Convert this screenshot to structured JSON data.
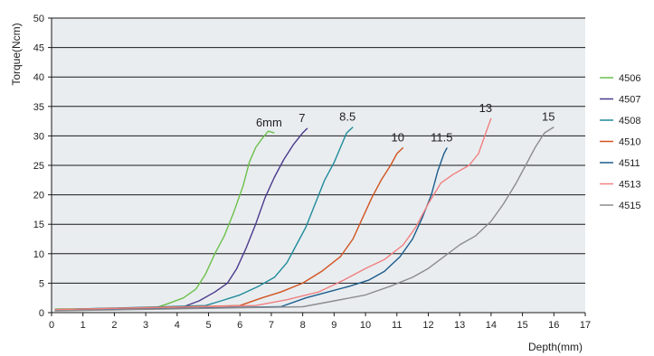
{
  "chart_data": {
    "type": "line",
    "xlabel": "Depth(mm)",
    "ylabel": "Torque(Ncm)",
    "xlim": [
      0,
      17
    ],
    "ylim": [
      0,
      50
    ],
    "xticks": [
      0,
      1,
      2,
      3,
      4,
      5,
      6,
      7,
      8,
      9,
      10,
      11,
      12,
      13,
      14,
      15,
      16,
      17
    ],
    "yticks": [
      0,
      5,
      10,
      15,
      20,
      25,
      30,
      35,
      40,
      45,
      50
    ],
    "grid": "horizontal",
    "plot_background": "#e9edf0",
    "legend_position": "right",
    "series": [
      {
        "name": "4506",
        "label": "6mm",
        "color": "#6cc04a",
        "points": [
          [
            0.1,
            0.6
          ],
          [
            3.3,
            0.8
          ],
          [
            3.7,
            1.5
          ],
          [
            4.2,
            2.5
          ],
          [
            4.6,
            4.0
          ],
          [
            4.9,
            6.5
          ],
          [
            5.2,
            10.0
          ],
          [
            5.5,
            13.0
          ],
          [
            5.8,
            17.0
          ],
          [
            6.1,
            21.5
          ],
          [
            6.3,
            25.5
          ],
          [
            6.5,
            28.0
          ],
          [
            6.7,
            29.5
          ],
          [
            6.9,
            30.8
          ],
          [
            7.1,
            30.5
          ]
        ]
      },
      {
        "name": "4507",
        "label": "7",
        "color": "#4b3a8c",
        "points": [
          [
            0.1,
            0.5
          ],
          [
            4.2,
            1.0
          ],
          [
            4.7,
            2.0
          ],
          [
            5.2,
            3.5
          ],
          [
            5.6,
            5.0
          ],
          [
            5.9,
            7.5
          ],
          [
            6.2,
            11.0
          ],
          [
            6.5,
            15.0
          ],
          [
            6.8,
            19.5
          ],
          [
            7.1,
            23.0
          ],
          [
            7.4,
            26.0
          ],
          [
            7.7,
            28.5
          ],
          [
            8.0,
            30.5
          ],
          [
            8.15,
            31.3
          ]
        ]
      },
      {
        "name": "4508",
        "label": "8.5",
        "color": "#1f8b9a",
        "points": [
          [
            0.1,
            0.5
          ],
          [
            4.9,
            1.2
          ],
          [
            5.4,
            2.0
          ],
          [
            6.0,
            3.0
          ],
          [
            6.6,
            4.5
          ],
          [
            7.1,
            6.0
          ],
          [
            7.5,
            8.5
          ],
          [
            7.8,
            11.5
          ],
          [
            8.1,
            14.5
          ],
          [
            8.4,
            18.5
          ],
          [
            8.7,
            22.5
          ],
          [
            9.0,
            25.5
          ],
          [
            9.2,
            28.0
          ],
          [
            9.4,
            30.5
          ],
          [
            9.6,
            31.5
          ]
        ]
      },
      {
        "name": "4510",
        "label": "10",
        "color": "#d2531f",
        "points": [
          [
            0.1,
            0.5
          ],
          [
            6.0,
            1.2
          ],
          [
            6.7,
            2.5
          ],
          [
            7.3,
            3.5
          ],
          [
            8.0,
            5.0
          ],
          [
            8.6,
            7.0
          ],
          [
            9.2,
            9.5
          ],
          [
            9.6,
            12.5
          ],
          [
            9.9,
            16.0
          ],
          [
            10.2,
            19.5
          ],
          [
            10.5,
            22.5
          ],
          [
            10.8,
            25.0
          ],
          [
            11.0,
            27.0
          ],
          [
            11.2,
            28.0
          ]
        ]
      },
      {
        "name": "4511",
        "label": "11.5",
        "color": "#1b5c8c",
        "points": [
          [
            0.1,
            0.4
          ],
          [
            7.3,
            1.0
          ],
          [
            8.1,
            2.5
          ],
          [
            8.8,
            3.5
          ],
          [
            9.5,
            4.5
          ],
          [
            10.1,
            5.5
          ],
          [
            10.6,
            7.0
          ],
          [
            11.1,
            9.5
          ],
          [
            11.5,
            12.5
          ],
          [
            11.8,
            16.0
          ],
          [
            12.1,
            20.0
          ],
          [
            12.3,
            24.0
          ],
          [
            12.5,
            27.0
          ],
          [
            12.6,
            28.0
          ]
        ]
      },
      {
        "name": "4513",
        "label": "13",
        "color": "#f08080",
        "points": [
          [
            0.1,
            0.5
          ],
          [
            6.5,
            1.2
          ],
          [
            7.5,
            2.2
          ],
          [
            8.5,
            3.5
          ],
          [
            9.3,
            5.5
          ],
          [
            10.0,
            7.5
          ],
          [
            10.6,
            9.0
          ],
          [
            11.2,
            11.5
          ],
          [
            11.6,
            14.5
          ],
          [
            12.0,
            18.5
          ],
          [
            12.4,
            22.0
          ],
          [
            12.8,
            23.5
          ],
          [
            13.3,
            25.0
          ],
          [
            13.6,
            27.0
          ],
          [
            13.8,
            30.0
          ],
          [
            14.0,
            33.0
          ]
        ]
      },
      {
        "name": "4515",
        "label": "15",
        "color": "#8c8c8c",
        "points": [
          [
            0.1,
            0.3
          ],
          [
            8.0,
            1.0
          ],
          [
            9.0,
            2.0
          ],
          [
            10.0,
            3.0
          ],
          [
            10.8,
            4.5
          ],
          [
            11.5,
            6.0
          ],
          [
            12.0,
            7.5
          ],
          [
            12.5,
            9.5
          ],
          [
            13.0,
            11.5
          ],
          [
            13.5,
            13.0
          ],
          [
            14.0,
            15.5
          ],
          [
            14.4,
            18.5
          ],
          [
            14.8,
            22.0
          ],
          [
            15.1,
            25.0
          ],
          [
            15.4,
            28.0
          ],
          [
            15.7,
            30.5
          ],
          [
            16.0,
            31.5
          ]
        ]
      }
    ]
  }
}
